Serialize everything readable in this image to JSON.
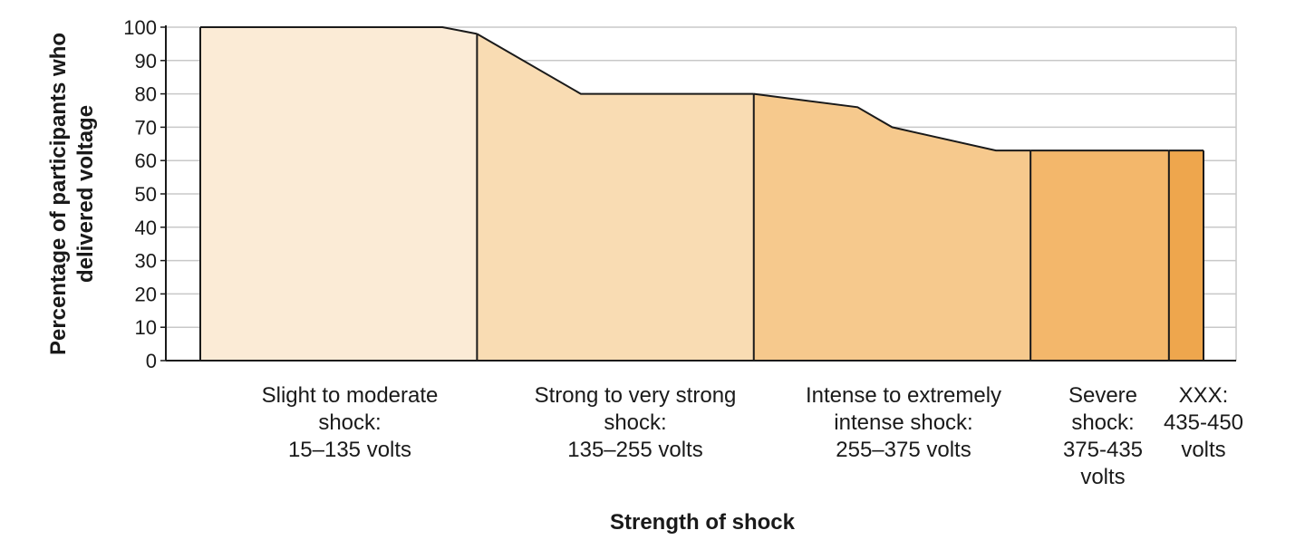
{
  "chart_data": {
    "type": "area",
    "title": "",
    "xlabel": "Strength of shock",
    "ylabel_lines": [
      "Percentage of participants who",
      "delivered voltage"
    ],
    "x_unit": "volts",
    "ylim": [
      0,
      100
    ],
    "y_ticks": [
      "0",
      "10",
      "20",
      "30",
      "40",
      "50",
      "60",
      "70",
      "80",
      "90",
      "100"
    ],
    "xlim": [
      15,
      450
    ],
    "grid": true,
    "line_color": "#1a1a1a",
    "grid_color": "#c8c8c8",
    "categories": [
      {
        "label_lines": [
          "Slight to moderate",
          "shock:",
          "15–135 volts"
        ],
        "x_range": [
          15,
          135
        ],
        "color": "#fbebd6",
        "points": [
          [
            15,
            100
          ],
          [
            120,
            100
          ],
          [
            135,
            98
          ]
        ]
      },
      {
        "label_lines": [
          "Strong to very strong",
          "shock:",
          "135–255 volts"
        ],
        "x_range": [
          135,
          255
        ],
        "color": "#f9dcb3",
        "points": [
          [
            135,
            98
          ],
          [
            180,
            80
          ],
          [
            255,
            80
          ]
        ]
      },
      {
        "label_lines": [
          "Intense to extremely",
          "intense shock:",
          "255–375 volts"
        ],
        "x_range": [
          255,
          375
        ],
        "color": "#f6c98d",
        "points": [
          [
            255,
            80
          ],
          [
            300,
            76
          ],
          [
            315,
            70
          ],
          [
            360,
            63
          ],
          [
            375,
            63
          ]
        ]
      },
      {
        "label_lines": [
          "Severe",
          "shock:",
          "375-435",
          "volts"
        ],
        "x_range": [
          375,
          435
        ],
        "color": "#f3b76b",
        "points": [
          [
            375,
            63
          ],
          [
            435,
            63
          ]
        ]
      },
      {
        "label_lines": [
          "XXX:",
          "435-450",
          "volts"
        ],
        "x_range": [
          435,
          450
        ],
        "color": "#eea64d",
        "points": [
          [
            435,
            63
          ],
          [
            450,
            63
          ]
        ]
      }
    ]
  }
}
